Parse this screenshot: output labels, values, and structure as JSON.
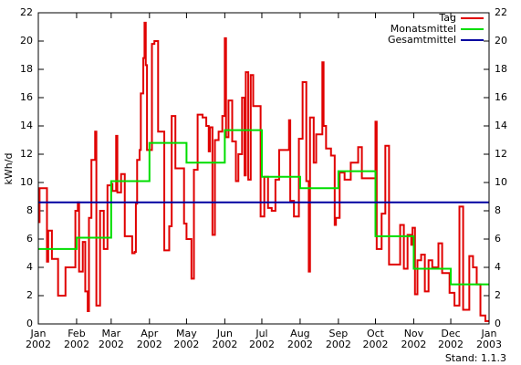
{
  "chart_data": {
    "type": "step",
    "ylabel": "kWh/d",
    "xlim": [
      0,
      365
    ],
    "xticks": [
      {
        "value": 0,
        "label": "Jan 2002"
      },
      {
        "value": 31,
        "label": "Feb 2002"
      },
      {
        "value": 59,
        "label": "Mar 2002"
      },
      {
        "value": 90,
        "label": "Apr 2002"
      },
      {
        "value": 120,
        "label": "May 2002"
      },
      {
        "value": 151,
        "label": "Jun 2002"
      },
      {
        "value": 181,
        "label": "Jul 2002"
      },
      {
        "value": 212,
        "label": "Aug 2002"
      },
      {
        "value": 243,
        "label": "Sep 2002"
      },
      {
        "value": 273,
        "label": "Oct 2002"
      },
      {
        "value": 304,
        "label": "Nov 2002"
      },
      {
        "value": 334,
        "label": "Dec 2002"
      },
      {
        "value": 365,
        "label": "Jan 2003"
      }
    ],
    "ylim": [
      0,
      22
    ],
    "yticks": [
      0,
      2,
      4,
      6,
      8,
      10,
      12,
      14,
      16,
      18,
      20,
      22
    ],
    "y2lim": [
      0,
      22
    ],
    "y2ticks": [
      0,
      2,
      4,
      6,
      8,
      10,
      12,
      14,
      16,
      18,
      20,
      22
    ],
    "legend": "upper right",
    "grid": false,
    "footnote": "Stand: 1.1.3",
    "series": [
      {
        "name": "Tag",
        "color": "#e00000",
        "x": [
          0,
          1,
          7,
          8,
          11,
          16,
          22,
          30,
          32,
          33,
          36,
          38,
          40,
          41,
          43,
          46,
          47,
          50,
          53,
          56,
          59,
          60,
          63,
          64,
          67,
          70,
          76,
          78,
          79,
          80,
          82,
          83,
          85,
          86,
          87,
          88,
          92,
          94,
          97,
          102,
          106,
          108,
          111,
          118,
          120,
          124,
          126,
          129,
          133,
          136,
          138,
          139,
          141,
          143,
          146,
          149,
          151,
          152,
          154,
          157,
          160,
          162,
          165,
          167,
          168,
          170,
          172,
          174,
          180,
          183,
          186,
          189,
          192,
          195,
          203,
          204,
          207,
          211,
          214,
          217,
          219,
          220,
          223,
          225,
          230,
          231,
          233,
          237,
          240,
          241,
          244,
          248,
          253,
          259,
          262,
          273,
          274,
          278,
          281,
          284,
          293,
          296,
          299,
          302,
          303,
          305,
          307,
          310,
          313,
          316,
          319,
          324,
          327,
          333,
          337,
          341,
          344,
          349,
          352,
          355,
          358,
          362
        ],
        "values": [
          7.2,
          9.6,
          4.4,
          6.6,
          4.6,
          2.0,
          4.0,
          8.0,
          8.6,
          3.7,
          5.8,
          2.3,
          0.9,
          7.5,
          11.6,
          13.6,
          1.3,
          8.0,
          5.3,
          9.8,
          9.9,
          9.4,
          13.3,
          9.3,
          10.6,
          6.2,
          5.0,
          5.1,
          8.5,
          11.6,
          12.3,
          16.3,
          18.8,
          21.3,
          18.3,
          12.3,
          19.8,
          20.0,
          13.6,
          5.2,
          6.9,
          14.7,
          11.0,
          7.1,
          6.0,
          3.2,
          10.9,
          14.8,
          14.6,
          14.0,
          12.2,
          13.9,
          6.3,
          13.0,
          13.6,
          14.7,
          20.2,
          13.2,
          15.8,
          12.9,
          10.1,
          12.0,
          16.0,
          10.5,
          17.8,
          10.2,
          17.6,
          15.4,
          7.6,
          10.4,
          8.2,
          8.0,
          10.2,
          12.3,
          14.4,
          8.7,
          7.6,
          13.1,
          17.1,
          10.1,
          3.7,
          14.6,
          11.4,
          13.4,
          18.5,
          14.0,
          12.4,
          11.9,
          7.0,
          7.5,
          10.7,
          10.2,
          11.4,
          12.5,
          10.3,
          14.3,
          5.3,
          7.8,
          12.6,
          4.2,
          7.0,
          3.9,
          6.3,
          5.6,
          6.8,
          2.1,
          4.5,
          4.9,
          2.3,
          4.5,
          4.0,
          5.7,
          3.6,
          2.2,
          1.3,
          8.3,
          1.0,
          4.8,
          4.0,
          2.8,
          0.6,
          0.2
        ]
      },
      {
        "name": "Monatsmittel",
        "color": "#00dd00",
        "x": [
          0,
          31,
          59,
          90,
          120,
          151,
          181,
          212,
          243,
          273,
          304,
          334
        ],
        "values": [
          5.3,
          6.1,
          10.1,
          12.8,
          11.4,
          13.7,
          10.4,
          9.6,
          10.8,
          6.2,
          3.9,
          2.8
        ]
      },
      {
        "name": "Gesamtmittel",
        "color": "#0000a0",
        "x": [
          0
        ],
        "values": [
          8.6
        ]
      }
    ]
  }
}
